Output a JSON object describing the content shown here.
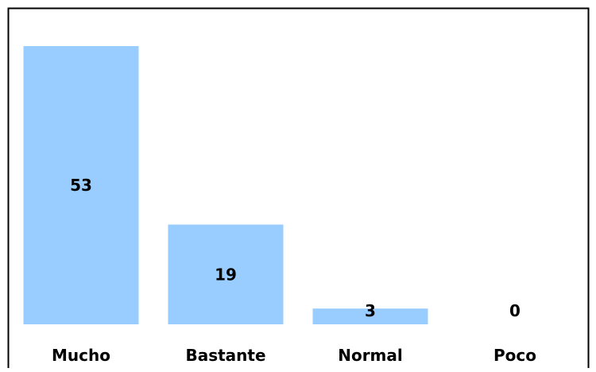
{
  "chart_data": {
    "type": "bar",
    "categories": [
      "Mucho",
      "Bastante",
      "Normal",
      "Poco"
    ],
    "values": [
      53,
      19,
      3,
      0
    ],
    "data_labels": [
      "53",
      "19",
      "3",
      "0"
    ],
    "title": "",
    "xlabel": "",
    "ylabel": "",
    "ylim": [
      0,
      53
    ],
    "grid": false,
    "legend": "none",
    "colors": {
      "bar": "#99ccff",
      "border": "#000000",
      "text": "#000000",
      "background": "#ffffff"
    }
  }
}
